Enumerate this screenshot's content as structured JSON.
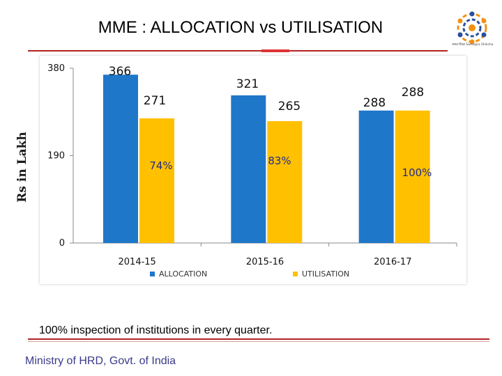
{
  "slide": {
    "title": "MME : ALLOCATION vs UTILISATION",
    "footer_note": "100% inspection of institutions in every quarter.",
    "ministry": "Ministry of HRD, Govt. of India",
    "logo_text": "समग्र शिक्षा Samagra Shiksha"
  },
  "colors": {
    "allocation": "#1f77c9",
    "utilisation": "#ffc000",
    "percent_text": "#1f2a8c",
    "rule": "#b22222"
  },
  "chart_data": {
    "type": "bar",
    "title": "MME : ALLOCATION vs UTILISATION",
    "ylabel": "Rs in Lakh",
    "xlabel": "",
    "ylim": [
      0,
      380
    ],
    "yticks": [
      "0",
      "190",
      "380"
    ],
    "ytick_values": [
      0,
      190,
      380
    ],
    "categories": [
      "2014-15",
      "2015-16",
      "2016-17"
    ],
    "series": [
      {
        "name": "ALLOCATION",
        "values": [
          366,
          321,
          288
        ],
        "labels": [
          "366",
          "321",
          "288"
        ]
      },
      {
        "name": "UTILISATION",
        "values": [
          271,
          265,
          288
        ],
        "labels": [
          "271",
          "265",
          "288"
        ]
      }
    ],
    "percent_labels": [
      "74%",
      "83%",
      "100%"
    ],
    "legend": "bottom",
    "grid": false
  }
}
